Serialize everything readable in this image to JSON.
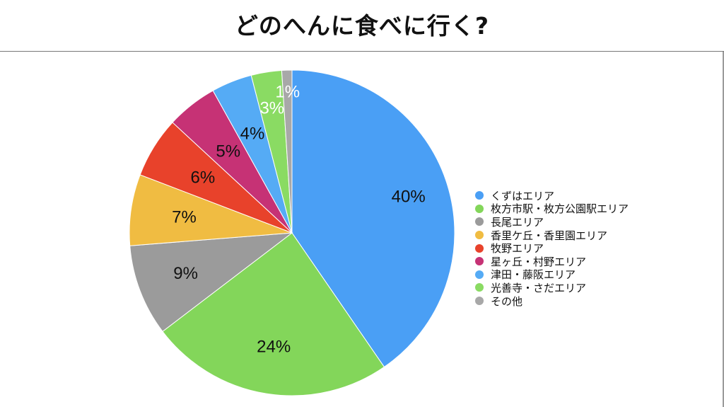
{
  "title": "どのへんに食べに行く?",
  "chart_data": {
    "type": "pie",
    "title": "どのへんに食べに行く?",
    "legend_position": "right",
    "slices": [
      {
        "label": "くずはエリア",
        "value": 40,
        "value_label": "40%",
        "color": "#4A9FF5"
      },
      {
        "label": "枚方市駅・枚方公園駅エリア",
        "value": 24,
        "value_label": "24%",
        "color": "#83D65A"
      },
      {
        "label": "長尾エリア",
        "value": 9,
        "value_label": "9%",
        "color": "#9B9B9B"
      },
      {
        "label": "香里ケ丘・香里園エリア",
        "value": 7,
        "value_label": "7%",
        "color": "#F0BC42"
      },
      {
        "label": "牧野エリア",
        "value": 6,
        "value_label": "6%",
        "color": "#E8422B"
      },
      {
        "label": "星ヶ丘・村野エリア",
        "value": 5,
        "value_label": "5%",
        "color": "#C63275"
      },
      {
        "label": "津田・藤阪エリア",
        "value": 4,
        "value_label": "4%",
        "color": "#55ABF5"
      },
      {
        "label": "光善寺・さだエリア",
        "value": 3,
        "value_label": "3%",
        "color": "#8ADB63"
      },
      {
        "label": "その他",
        "value": 1,
        "value_label": "1%",
        "color": "#A8A8A8"
      }
    ]
  }
}
